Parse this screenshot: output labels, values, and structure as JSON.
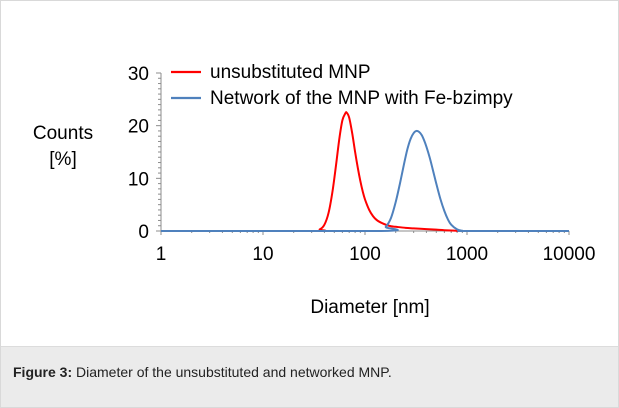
{
  "caption": {
    "label": "Figure 3:",
    "text": " Diameter of the unsubstituted and networked MNP."
  },
  "chart_data": {
    "type": "line",
    "title": "",
    "xlabel": "Diameter [nm]",
    "ylabel_lines": [
      "Counts",
      "[%]"
    ],
    "xscale": "log",
    "xlim": [
      1,
      10000
    ],
    "ylim": [
      0,
      30
    ],
    "xticks": [
      1,
      10,
      100,
      1000,
      10000
    ],
    "xtick_labels": [
      "1",
      "10",
      "100",
      "1000",
      "10000"
    ],
    "yticks": [
      0,
      10,
      20,
      30
    ],
    "ytick_labels": [
      "0",
      "10",
      "20",
      "30"
    ],
    "grid": false,
    "legend_position": "top",
    "series": [
      {
        "name": "unsubstituted MNP",
        "color": "#ff0000",
        "x": [
          1,
          30,
          36,
          40,
          44,
          48,
          52,
          56,
          60,
          64,
          66,
          70,
          75,
          80,
          85,
          90,
          95,
          100,
          110,
          120,
          130,
          140,
          160,
          180,
          200,
          250,
          300,
          400,
          500,
          600,
          800,
          1000,
          10000
        ],
        "y": [
          0,
          0,
          0.3,
          1.2,
          3.5,
          7.5,
          12.5,
          17.5,
          21,
          22.3,
          22.5,
          21.5,
          18.5,
          15,
          12,
          9.5,
          7.5,
          6,
          4,
          2.8,
          2.1,
          1.7,
          1.2,
          0.9,
          0.8,
          0.6,
          0.5,
          0.35,
          0.25,
          0.15,
          0.05,
          0,
          0
        ]
      },
      {
        "name": "Network of the MNP with Fe-bzimpy",
        "color": "#4f81bd",
        "x": [
          1,
          140,
          160,
          180,
          200,
          220,
          240,
          260,
          280,
          300,
          320,
          340,
          360,
          380,
          400,
          430,
          460,
          500,
          550,
          600,
          650,
          700,
          800,
          900,
          1000,
          10000
        ],
        "y": [
          0,
          0,
          0.8,
          2.5,
          5.5,
          9,
          12.5,
          15.5,
          17.5,
          18.6,
          19,
          18.8,
          18.2,
          17.2,
          16,
          14,
          11.8,
          9,
          6,
          3.8,
          2.2,
          1.2,
          0.3,
          0.05,
          0,
          0
        ]
      }
    ]
  }
}
